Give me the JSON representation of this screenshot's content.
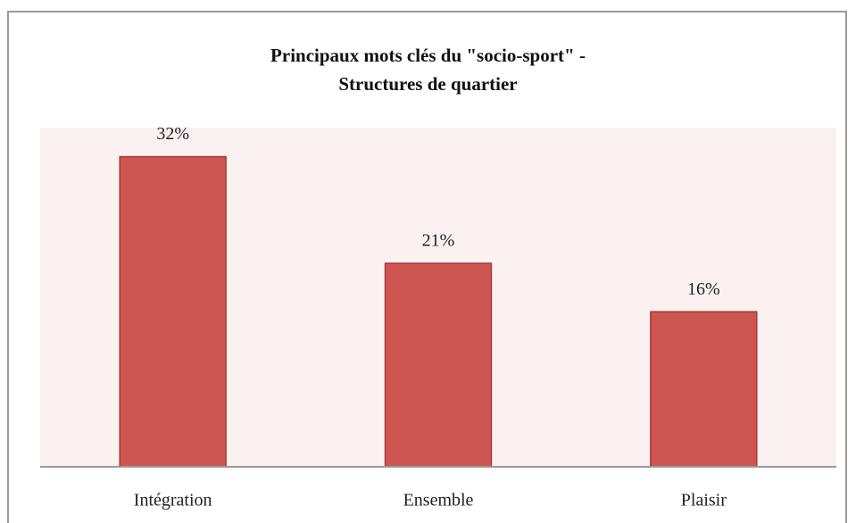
{
  "chart_data": {
    "type": "bar",
    "title": "Principaux mots clés du \"socio-sport\" -\nStructures de quartier",
    "categories": [
      "Intégration",
      "Ensemble",
      "Plaisir"
    ],
    "values": [
      32,
      21,
      16
    ],
    "value_labels": [
      "32%",
      "21%",
      "16%"
    ],
    "color": "#cd5652",
    "ylim": [
      0,
      35
    ]
  }
}
